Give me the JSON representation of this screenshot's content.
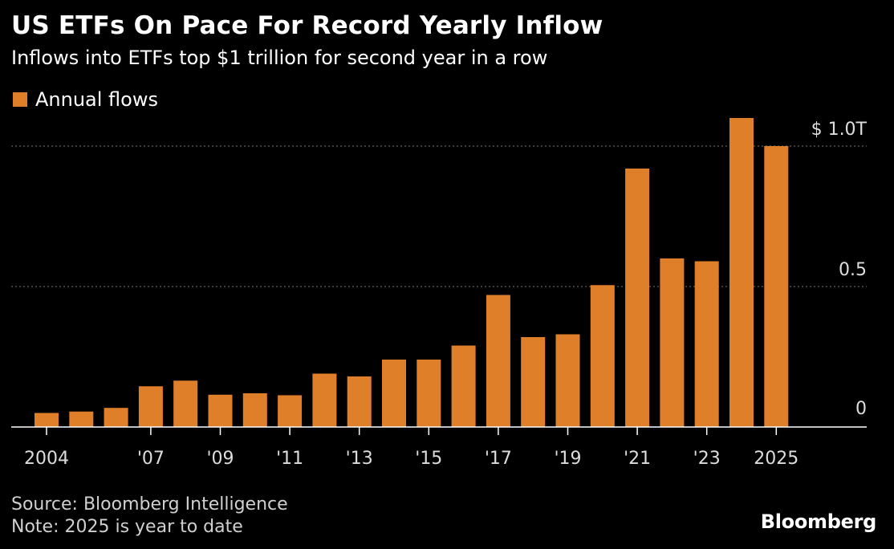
{
  "title": "US ETFs On Pace For Record Yearly Inflow",
  "subtitle": "Inflows into ETFs top $1 trillion for second year in a row",
  "legend": {
    "label": "Annual flows"
  },
  "footer": {
    "source": "Source: Bloomberg Intelligence",
    "note": "Note: 2025 is year to date"
  },
  "brand": "Bloomberg",
  "colors": {
    "bar": "#E07F2A",
    "background": "#000000",
    "grid": "#7a7a7a",
    "text": "#ffffff",
    "axis_text": "#dddddd"
  },
  "chart_data": {
    "type": "bar",
    "categories": [
      "2004",
      "2005",
      "2006",
      "2007",
      "2008",
      "2009",
      "2010",
      "2011",
      "2012",
      "2013",
      "2014",
      "2015",
      "2016",
      "2017",
      "2018",
      "2019",
      "2020",
      "2021",
      "2022",
      "2023",
      "2024",
      "2025"
    ],
    "x_tick_labels": [
      "2004",
      "",
      "",
      "'07",
      "",
      "'09",
      "",
      "'11",
      "",
      "'13",
      "",
      "'15",
      "",
      "'17",
      "",
      "'19",
      "",
      "'21",
      "",
      "'23",
      "",
      "2025"
    ],
    "series": [
      {
        "name": "Annual flows",
        "values": [
          0.05,
          0.055,
          0.068,
          0.145,
          0.165,
          0.115,
          0.12,
          0.113,
          0.19,
          0.18,
          0.24,
          0.24,
          0.29,
          0.47,
          0.32,
          0.33,
          0.505,
          0.92,
          0.6,
          0.59,
          1.1,
          1.0
        ]
      }
    ],
    "y_ticks": [
      0,
      0.5,
      1.0
    ],
    "y_tick_labels": [
      "0",
      "0.5",
      "$ 1.0T"
    ],
    "ylim": [
      0,
      1.1
    ],
    "grid": true,
    "legend_position": "top-left"
  }
}
